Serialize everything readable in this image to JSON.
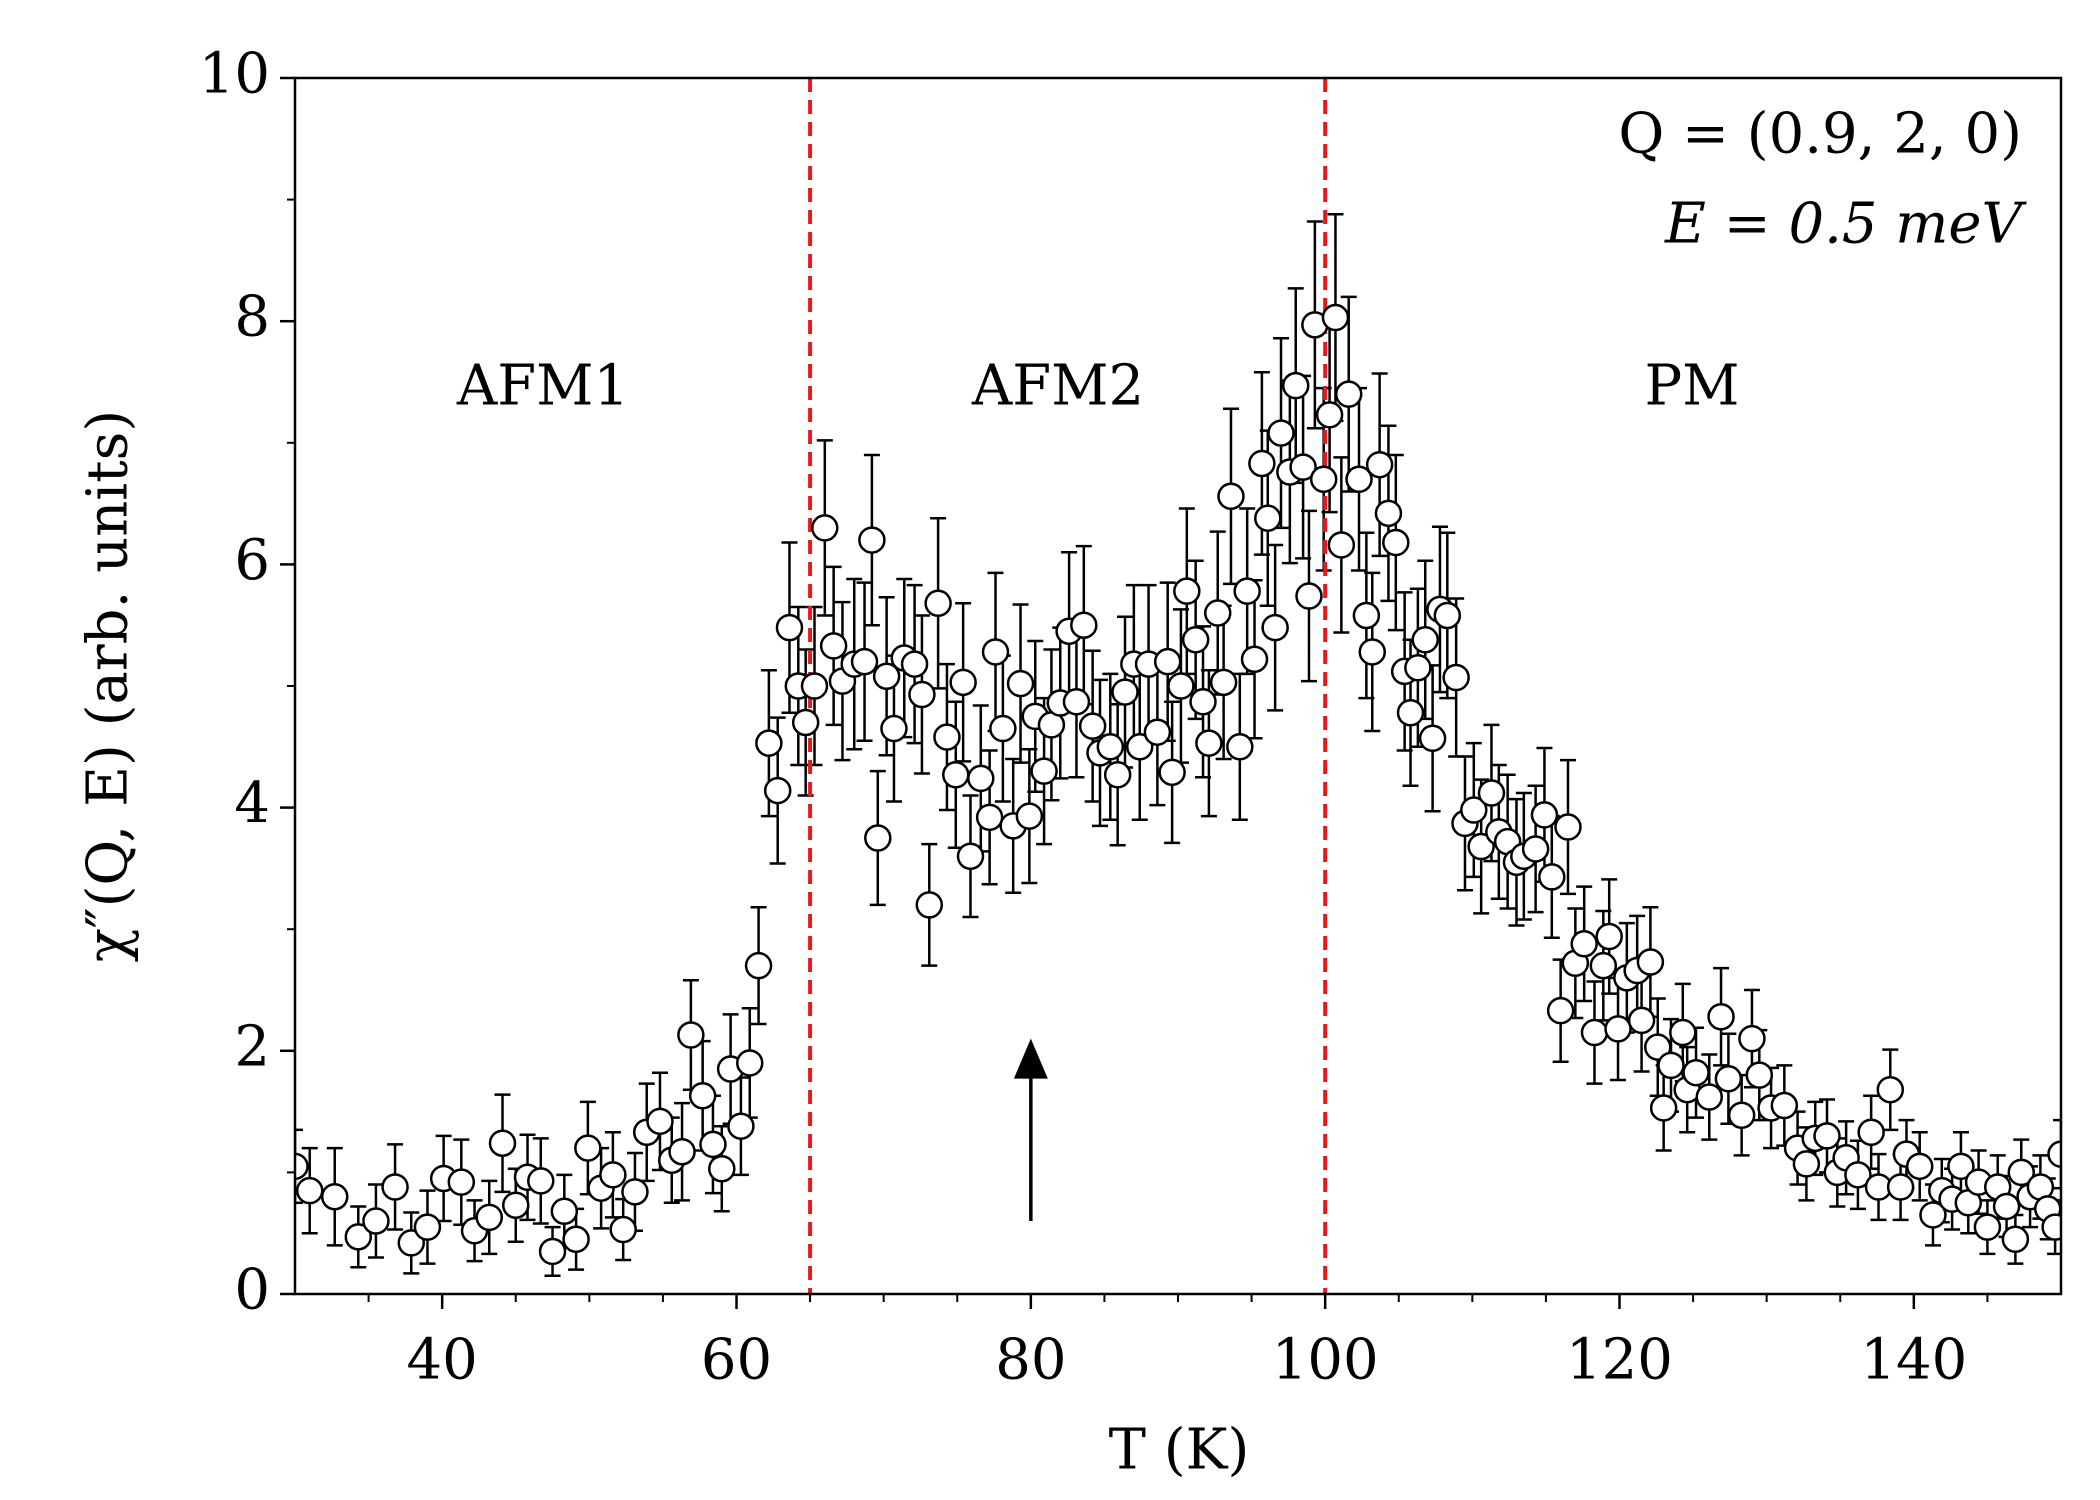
{
  "chart_data": {
    "type": "scatter",
    "xlabel": "T (K)",
    "ylabel": "χ″(Q, E) (arb. units)",
    "annotations": [
      "AFM1",
      "AFM2",
      "PM",
      "Q = (0.9, 2, 0)",
      "E = 0.5 meV"
    ],
    "vlines": [
      65,
      100
    ],
    "vline_color": "#e41a1c",
    "arrow": {
      "x": 80,
      "y_from": 0.6,
      "y_to": 2.1
    },
    "xlim": [
      30,
      150
    ],
    "xticks": [
      40,
      60,
      80,
      100,
      120,
      140
    ],
    "xminorticks": [
      35,
      45,
      50,
      55,
      65,
      70,
      75,
      85,
      90,
      95,
      105,
      110,
      115,
      125,
      130,
      135,
      145
    ],
    "ylim": [
      0,
      10
    ],
    "yticks": [
      0,
      2,
      4,
      6,
      8,
      10
    ],
    "yminorticks": [
      1,
      3,
      5,
      7,
      9
    ],
    "color": "#ffffff",
    "edge_color": "#000000",
    "x": [
      30,
      31,
      32.7,
      34.3,
      35.5,
      36.8,
      37.9,
      39,
      40.1,
      41.3,
      42.2,
      43.2,
      44.1,
      45,
      45.8,
      46.7,
      47.5,
      48.3,
      49.1,
      49.9,
      50.8,
      51.6,
      52.3,
      53.1,
      53.9,
      54.8,
      55.6,
      56.3,
      56.9,
      57.7,
      58.4,
      59,
      59.6,
      60.3,
      60.9,
      61.5,
      62.2,
      62.8,
      63.6,
      64.2,
      64.7,
      65.3,
      66,
      66.6,
      67.2,
      68,
      68.7,
      69.2,
      69.6,
      70.2,
      70.7,
      71.4,
      72.1,
      72.6,
      73.1,
      73.7,
      74.3,
      74.9,
      75.4,
      75.9,
      76.6,
      77.2,
      77.6,
      78.1,
      78.8,
      79.3,
      79.9,
      80.3,
      80.9,
      81.4,
      82,
      82.6,
      83.1,
      83.6,
      84.2,
      84.7,
      85.4,
      85.9,
      86.4,
      87,
      87.4,
      88,
      88.6,
      89.3,
      89.6,
      90.2,
      90.6,
      91.2,
      91.7,
      92.1,
      92.7,
      93.1,
      93.6,
      94.2,
      94.7,
      95.2,
      95.7,
      96.1,
      96.6,
      97,
      97.6,
      98,
      98.5,
      98.9,
      99.3,
      99.9,
      100.3,
      100.7,
      101.1,
      101.6,
      102.3,
      102.8,
      103.2,
      103.7,
      104.3,
      104.8,
      105.4,
      105.8,
      106.3,
      106.8,
      107.3,
      107.8,
      108.3,
      108.9,
      109.5,
      110.1,
      110.6,
      111.3,
      111.8,
      112.4,
      113,
      113.5,
      114.3,
      114.9,
      115.4,
      116,
      116.5,
      117,
      117.6,
      118.3,
      118.9,
      119.3,
      119.9,
      120.5,
      121.2,
      121.5,
      122.1,
      122.6,
      123,
      123.5,
      124.3,
      124.6,
      125.2,
      126.1,
      126.9,
      127.4,
      128.3,
      129,
      129.5,
      130.3,
      131.2,
      132.1,
      132.7,
      133.3,
      134.1,
      134.8,
      135.4,
      136.2,
      137.1,
      137.6,
      138.4,
      139.1,
      139.5,
      140.4,
      141.3,
      141.9,
      142.6,
      143.2,
      143.7,
      144.4,
      145,
      145.7,
      146.3,
      146.9,
      147.3,
      147.9,
      148.6,
      149.1,
      149.6,
      150
    ],
    "values": [
      1.05,
      0.85,
      0.8,
      0.47,
      0.6,
      0.88,
      0.42,
      0.55,
      0.95,
      0.92,
      0.52,
      0.63,
      1.24,
      0.73,
      0.96,
      0.93,
      0.35,
      0.68,
      0.45,
      1.2,
      0.87,
      0.98,
      0.53,
      0.84,
      1.33,
      1.42,
      1.1,
      1.17,
      2.13,
      1.63,
      1.23,
      1.03,
      1.85,
      1.38,
      1.9,
      2.7,
      4.53,
      4.14,
      5.48,
      5,
      4.7,
      5,
      6.3,
      5.33,
      5.04,
      5.18,
      5.2,
      6.2,
      3.75,
      5.08,
      4.65,
      5.23,
      5.18,
      4.93,
      3.2,
      5.68,
      4.58,
      4.27,
      5.03,
      3.6,
      4.24,
      3.92,
      5.28,
      4.65,
      3.85,
      5.02,
      3.93,
      4.75,
      4.3,
      4.68,
      4.86,
      5.45,
      4.87,
      5.5,
      4.67,
      4.45,
      4.5,
      4.27,
      4.95,
      5.18,
      4.5,
      5.18,
      4.62,
      5.2,
      4.29,
      5,
      5.78,
      5.38,
      4.87,
      4.53,
      5.6,
      5.03,
      6.56,
      4.5,
      5.78,
      5.22,
      6.83,
      6.38,
      5.48,
      7.08,
      6.76,
      7.47,
      6.8,
      5.74,
      7.97,
      6.7,
      7.23,
      8.03,
      6.16,
      7.4,
      6.7,
      5.58,
      5.28,
      6.82,
      6.42,
      6.18,
      5.12,
      4.78,
      5.15,
      5.38,
      4.57,
      5.63,
      5.58,
      5.07,
      3.87,
      3.98,
      3.68,
      4.12,
      3.8,
      3.72,
      3.55,
      3.6,
      3.66,
      3.94,
      3.43,
      2.33,
      3.84,
      2.72,
      2.88,
      2.15,
      2.7,
      2.94,
      2.18,
      2.6,
      2.66,
      2.25,
      2.73,
      2.03,
      1.53,
      1.88,
      2.15,
      1.68,
      1.82,
      1.62,
      2.28,
      1.77,
      1.47,
      2.1,
      1.8,
      1.53,
      1.55,
      1.2,
      1.07,
      1.28,
      1.3,
      1,
      1.12,
      0.98,
      1.33,
      0.88,
      1.68,
      0.88,
      1.15,
      1.05,
      0.65,
      0.85,
      0.78,
      1.05,
      0.75,
      0.92,
      0.55,
      0.88,
      0.72,
      0.45,
      1,
      0.8,
      0.88,
      0.7,
      0.55,
      1.15
    ],
    "errors": [
      0.3,
      0.35,
      0.4,
      0.25,
      0.3,
      0.35,
      0.25,
      0.3,
      0.35,
      0.35,
      0.25,
      0.3,
      0.4,
      0.3,
      0.35,
      0.35,
      0.2,
      0.3,
      0.25,
      0.38,
      0.33,
      0.35,
      0.25,
      0.32,
      0.4,
      0.4,
      0.35,
      0.4,
      0.45,
      0.45,
      0.4,
      0.35,
      0.45,
      0.4,
      0.45,
      0.48,
      0.6,
      0.6,
      0.7,
      0.65,
      0.6,
      0.65,
      0.72,
      0.65,
      0.65,
      0.7,
      0.65,
      0.7,
      0.55,
      0.65,
      0.6,
      0.65,
      0.65,
      0.65,
      0.5,
      0.7,
      0.6,
      0.6,
      0.65,
      0.5,
      0.6,
      0.55,
      0.65,
      0.6,
      0.55,
      0.65,
      0.55,
      0.62,
      0.6,
      0.62,
      0.62,
      0.65,
      0.62,
      0.65,
      0.62,
      0.6,
      0.6,
      0.58,
      0.62,
      0.65,
      0.6,
      0.65,
      0.6,
      0.65,
      0.58,
      0.63,
      0.68,
      0.65,
      0.62,
      0.6,
      0.67,
      0.63,
      0.72,
      0.6,
      0.68,
      0.65,
      0.75,
      0.72,
      0.68,
      0.78,
      0.75,
      0.8,
      0.75,
      0.7,
      0.85,
      0.75,
      0.8,
      0.85,
      0.72,
      0.8,
      0.75,
      0.68,
      0.65,
      0.75,
      0.72,
      0.72,
      0.65,
      0.6,
      0.65,
      0.65,
      0.6,
      0.68,
      0.68,
      0.65,
      0.55,
      0.55,
      0.55,
      0.56,
      0.55,
      0.55,
      0.52,
      0.52,
      0.52,
      0.55,
      0.5,
      0.42,
      0.55,
      0.45,
      0.47,
      0.42,
      0.45,
      0.47,
      0.42,
      0.45,
      0.45,
      0.42,
      0.45,
      0.4,
      0.35,
      0.38,
      0.4,
      0.35,
      0.37,
      0.35,
      0.4,
      0.37,
      0.33,
      0.4,
      0.37,
      0.33,
      0.33,
      0.3,
      0.3,
      0.3,
      0.3,
      0.28,
      0.3,
      0.28,
      0.3,
      0.27,
      0.33,
      0.27,
      0.28,
      0.28,
      0.25,
      0.26,
      0.25,
      0.28,
      0.25,
      0.26,
      0.22,
      0.26,
      0.25,
      0.2,
      0.27,
      0.25,
      0.26,
      0.25,
      0.22,
      0.28
    ]
  }
}
